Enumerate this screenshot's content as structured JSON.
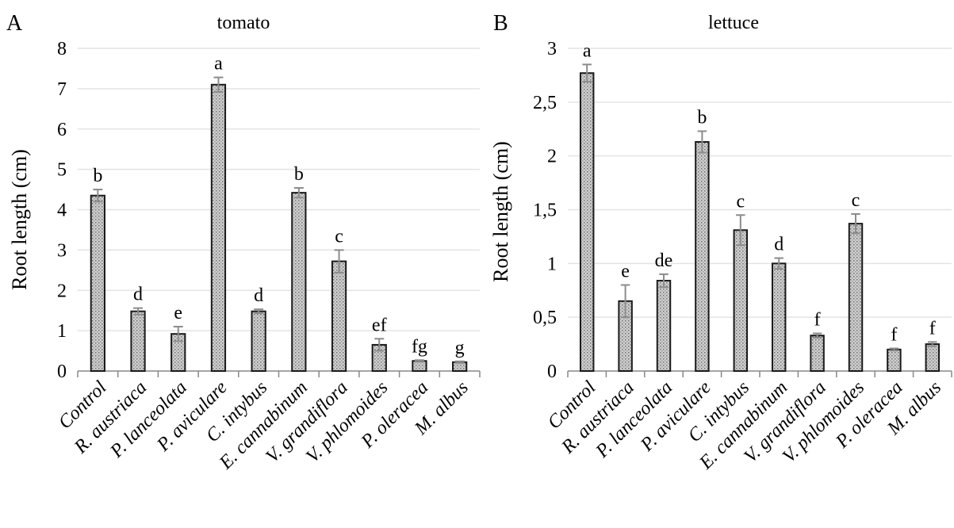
{
  "chart_data": [
    {
      "panel": "A",
      "type": "bar",
      "title": "tomato",
      "ylabel": "Root length (cm)",
      "xlabel": "",
      "ylim": [
        0,
        8
      ],
      "yticks": [
        "0",
        "1",
        "2",
        "3",
        "4",
        "5",
        "6",
        "7",
        "8"
      ],
      "categories": [
        "Control",
        "R. austriaca",
        "P. lanceolata",
        "P. aviculare",
        "C. intybus",
        "E. cannabinum",
        "V. grandiflora",
        "V. phlomoides",
        "P. oleracea",
        "M. albus"
      ],
      "values": [
        4.35,
        1.48,
        0.92,
        7.1,
        1.48,
        4.42,
        2.72,
        0.65,
        0.25,
        0.22
      ],
      "errors": [
        0.15,
        0.08,
        0.18,
        0.18,
        0.05,
        0.12,
        0.28,
        0.15,
        0.02,
        0.02
      ],
      "significance": [
        "b",
        "d",
        "e",
        "a",
        "d",
        "b",
        "c",
        "ef",
        "fg",
        "g"
      ],
      "grid": true
    },
    {
      "panel": "B",
      "type": "bar",
      "title": "lettuce",
      "ylabel": "Root length (cm)",
      "xlabel": "",
      "ylim": [
        0,
        3
      ],
      "yticks": [
        "0",
        "0,5",
        "1",
        "1,5",
        "2",
        "2,5",
        "3"
      ],
      "categories": [
        "Control",
        "R. austriaca",
        "P. lanceolata",
        "P. aviculare",
        "C. intybus",
        "E. cannabinum",
        "V. grandiflora",
        "V. phlomoides",
        "P. oleracea",
        "M. albus"
      ],
      "values": [
        2.77,
        0.65,
        0.84,
        2.13,
        1.31,
        1.0,
        0.33,
        1.37,
        0.2,
        0.25
      ],
      "errors": [
        0.08,
        0.15,
        0.06,
        0.1,
        0.14,
        0.05,
        0.02,
        0.09,
        0.01,
        0.02
      ],
      "significance": [
        "a",
        "e",
        "de",
        "b",
        "c",
        "d",
        "f",
        "c",
        "f",
        "f"
      ],
      "grid": true
    }
  ],
  "colors": {
    "bar_fill": "#d4d4d4",
    "bar_stroke": "#1a1a1a",
    "error_bar": "#8c8c8c",
    "grid": "#e4e4e4",
    "axis": "#888888"
  }
}
